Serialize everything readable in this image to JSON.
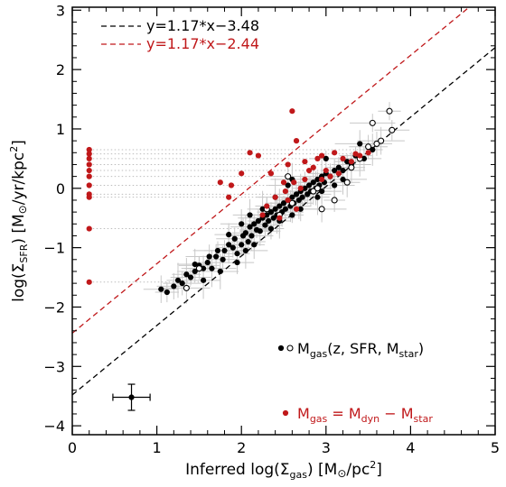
{
  "chart_data": {
    "type": "scatter",
    "xlabel": {
      "prefix": "Inferred log(Σ",
      "sub": "gas",
      "mid": ") [M",
      "sym": "⊙",
      "suffix": "/pc",
      "sup": "2",
      "end": "]"
    },
    "ylabel": {
      "prefix": "log(Σ",
      "sub": "SFR",
      "mid": ") [M",
      "sym": "⊙",
      "suffix": "/yr/kpc",
      "sup": "2",
      "end": "]"
    },
    "xlim": [
      0,
      5
    ],
    "ylim": [
      -4.15,
      3.05
    ],
    "xticks": [
      "0",
      "1",
      "2",
      "3",
      "4",
      "5"
    ],
    "yticks": [
      "-4",
      "-3",
      "-2",
      "-1",
      "0",
      "1",
      "2",
      "3"
    ],
    "colors": {
      "black": "#000000",
      "red": "#c0181a",
      "errorbar": "#c8c8c8",
      "dotted": "#bdbdbd"
    },
    "lines": [
      {
        "label": "y=1.17*x−3.48",
        "slope": 1.17,
        "intercept": -3.48,
        "color": "#000000"
      },
      {
        "label": "y=1.17*x−2.44",
        "slope": 1.17,
        "intercept": -2.44,
        "color": "#c0181a"
      }
    ],
    "legend": [
      {
        "text": "M",
        "sub": "gas",
        "rest": "(z, SFR, M",
        "sub2": "star",
        "end": ")",
        "color": "#000000",
        "markers": "filled+open"
      },
      {
        "text": "M",
        "sub": "gas",
        "rest": " = M",
        "sub2": "dyn",
        "mid": " − M",
        "sub3": "star",
        "color": "#c0181a",
        "markers": "red"
      }
    ],
    "typical_error": {
      "x": 0.7,
      "y": -3.52,
      "xerr": 0.22,
      "yerr": 0.22
    },
    "series": [
      {
        "name": "Mgas(z, SFR, Mstar) filled",
        "marker": "filled-black",
        "points": [
          [
            1.05,
            -1.7
          ],
          [
            1.12,
            -1.75
          ],
          [
            1.2,
            -1.65
          ],
          [
            1.25,
            -1.55
          ],
          [
            1.3,
            -1.6
          ],
          [
            1.35,
            -1.45
          ],
          [
            1.4,
            -1.5
          ],
          [
            1.45,
            -1.4
          ],
          [
            1.5,
            -1.3
          ],
          [
            1.55,
            -1.35
          ],
          [
            1.6,
            -1.25
          ],
          [
            1.65,
            -1.35
          ],
          [
            1.7,
            -1.15
          ],
          [
            1.72,
            -1.05
          ],
          [
            1.78,
            -1.2
          ],
          [
            1.8,
            -1.05
          ],
          [
            1.85,
            -0.95
          ],
          [
            1.9,
            -1.0
          ],
          [
            1.92,
            -0.85
          ],
          [
            1.95,
            -1.1
          ],
          [
            2.0,
            -0.95
          ],
          [
            2.02,
            -0.8
          ],
          [
            2.05,
            -0.75
          ],
          [
            2.08,
            -0.9
          ],
          [
            2.1,
            -0.65
          ],
          [
            2.12,
            -0.8
          ],
          [
            2.15,
            -0.6
          ],
          [
            2.18,
            -0.7
          ],
          [
            2.2,
            -0.55
          ],
          [
            2.22,
            -0.72
          ],
          [
            2.25,
            -0.5
          ],
          [
            2.28,
            -0.62
          ],
          [
            2.3,
            -0.45
          ],
          [
            2.32,
            -0.55
          ],
          [
            2.35,
            -0.4
          ],
          [
            2.38,
            -0.5
          ],
          [
            2.4,
            -0.35
          ],
          [
            2.42,
            -0.45
          ],
          [
            2.45,
            -0.3
          ],
          [
            2.48,
            -0.4
          ],
          [
            2.5,
            -0.25
          ],
          [
            2.52,
            -0.35
          ],
          [
            2.55,
            -0.2
          ],
          [
            2.58,
            -0.3
          ],
          [
            2.6,
            -0.15
          ],
          [
            2.62,
            -0.25
          ],
          [
            2.65,
            -0.1
          ],
          [
            2.68,
            -0.2
          ],
          [
            2.7,
            -0.05
          ],
          [
            2.72,
            -0.15
          ],
          [
            2.75,
            0.0
          ],
          [
            2.78,
            -0.1
          ],
          [
            2.8,
            0.05
          ],
          [
            2.82,
            -0.05
          ],
          [
            2.85,
            0.1
          ],
          [
            2.88,
            0.0
          ],
          [
            2.9,
            0.15
          ],
          [
            2.92,
            0.05
          ],
          [
            2.95,
            0.2
          ],
          [
            2.98,
            0.1
          ],
          [
            3.0,
            0.25
          ],
          [
            3.05,
            0.2
          ],
          [
            3.1,
            0.3
          ],
          [
            3.15,
            0.35
          ],
          [
            3.2,
            0.3
          ],
          [
            3.25,
            0.45
          ],
          [
            3.3,
            0.4
          ],
          [
            3.35,
            0.55
          ],
          [
            3.45,
            0.5
          ],
          [
            3.55,
            0.65
          ],
          [
            2.1,
            -0.45
          ],
          [
            2.25,
            -0.35
          ],
          [
            2.0,
            -0.6
          ],
          [
            1.85,
            -0.78
          ],
          [
            2.45,
            -0.55
          ],
          [
            2.6,
            -0.45
          ],
          [
            2.35,
            -0.68
          ],
          [
            2.15,
            -0.95
          ],
          [
            1.95,
            -1.25
          ],
          [
            1.75,
            -1.4
          ],
          [
            2.7,
            -0.35
          ],
          [
            2.9,
            -0.15
          ],
          [
            3.1,
            0.05
          ],
          [
            3.2,
            0.15
          ],
          [
            1.55,
            -1.55
          ],
          [
            1.62,
            -1.15
          ],
          [
            1.45,
            -1.28
          ],
          [
            2.05,
            -1.05
          ],
          [
            2.4,
            -0.15
          ],
          [
            2.55,
            0.05
          ],
          [
            3.0,
            0.5
          ],
          [
            3.4,
            0.75
          ],
          [
            2.95,
            -0.05
          ],
          [
            2.6,
            0.15
          ]
        ]
      },
      {
        "name": "Mgas(z, SFR, Mstar) open",
        "marker": "open-black",
        "points": [
          [
            1.5,
            -1.35
          ],
          [
            1.35,
            -1.68
          ],
          [
            2.3,
            -0.35
          ],
          [
            2.45,
            -0.45
          ],
          [
            2.55,
            0.2
          ],
          [
            2.6,
            -0.25
          ],
          [
            2.85,
            -0.05
          ],
          [
            2.9,
            0.0
          ],
          [
            2.95,
            -0.35
          ],
          [
            3.1,
            -0.2
          ],
          [
            3.25,
            0.1
          ],
          [
            3.3,
            0.35
          ],
          [
            3.4,
            0.5
          ],
          [
            3.5,
            0.7
          ],
          [
            3.55,
            1.1
          ],
          [
            3.6,
            0.75
          ],
          [
            3.65,
            0.8
          ],
          [
            3.75,
            1.3
          ],
          [
            3.78,
            0.98
          ]
        ]
      },
      {
        "name": "Mgas = Mdyn − Mstar",
        "marker": "filled-red",
        "x_fixed": 0.2,
        "points": [
          [
            0.2,
            0.65
          ],
          [
            0.2,
            0.58
          ],
          [
            0.2,
            0.5
          ],
          [
            0.2,
            0.4
          ],
          [
            0.2,
            0.3
          ],
          [
            0.2,
            0.2
          ],
          [
            0.2,
            0.05
          ],
          [
            0.2,
            -0.1
          ],
          [
            0.2,
            -0.15
          ],
          [
            0.2,
            -0.68
          ],
          [
            0.2,
            -1.58
          ],
          [
            1.75,
            0.1
          ],
          [
            1.85,
            -0.15
          ],
          [
            1.88,
            0.05
          ],
          [
            2.0,
            0.25
          ],
          [
            2.1,
            0.6
          ],
          [
            2.2,
            0.55
          ],
          [
            2.25,
            -0.45
          ],
          [
            2.3,
            -0.3
          ],
          [
            2.35,
            0.25
          ],
          [
            2.45,
            -0.5
          ],
          [
            2.5,
            0.1
          ],
          [
            2.52,
            -0.05
          ],
          [
            2.55,
            -0.2
          ],
          [
            2.55,
            0.4
          ],
          [
            2.6,
            1.3
          ],
          [
            2.62,
            0.1
          ],
          [
            2.65,
            -0.35
          ],
          [
            2.7,
            0.0
          ],
          [
            2.75,
            0.15
          ],
          [
            2.8,
            0.3
          ],
          [
            2.85,
            0.35
          ],
          [
            2.9,
            0.5
          ],
          [
            2.95,
            0.15
          ],
          [
            3.0,
            0.3
          ],
          [
            3.1,
            0.6
          ],
          [
            3.2,
            0.5
          ],
          [
            3.3,
            0.45
          ],
          [
            3.5,
            0.6
          ],
          [
            2.75,
            0.45
          ],
          [
            2.4,
            -0.15
          ],
          [
            3.4,
            0.55
          ],
          [
            2.65,
            0.8
          ],
          [
            2.95,
            0.55
          ],
          [
            3.05,
            0.2
          ],
          [
            3.15,
            0.25
          ],
          [
            3.35,
            0.58
          ]
        ]
      }
    ]
  }
}
